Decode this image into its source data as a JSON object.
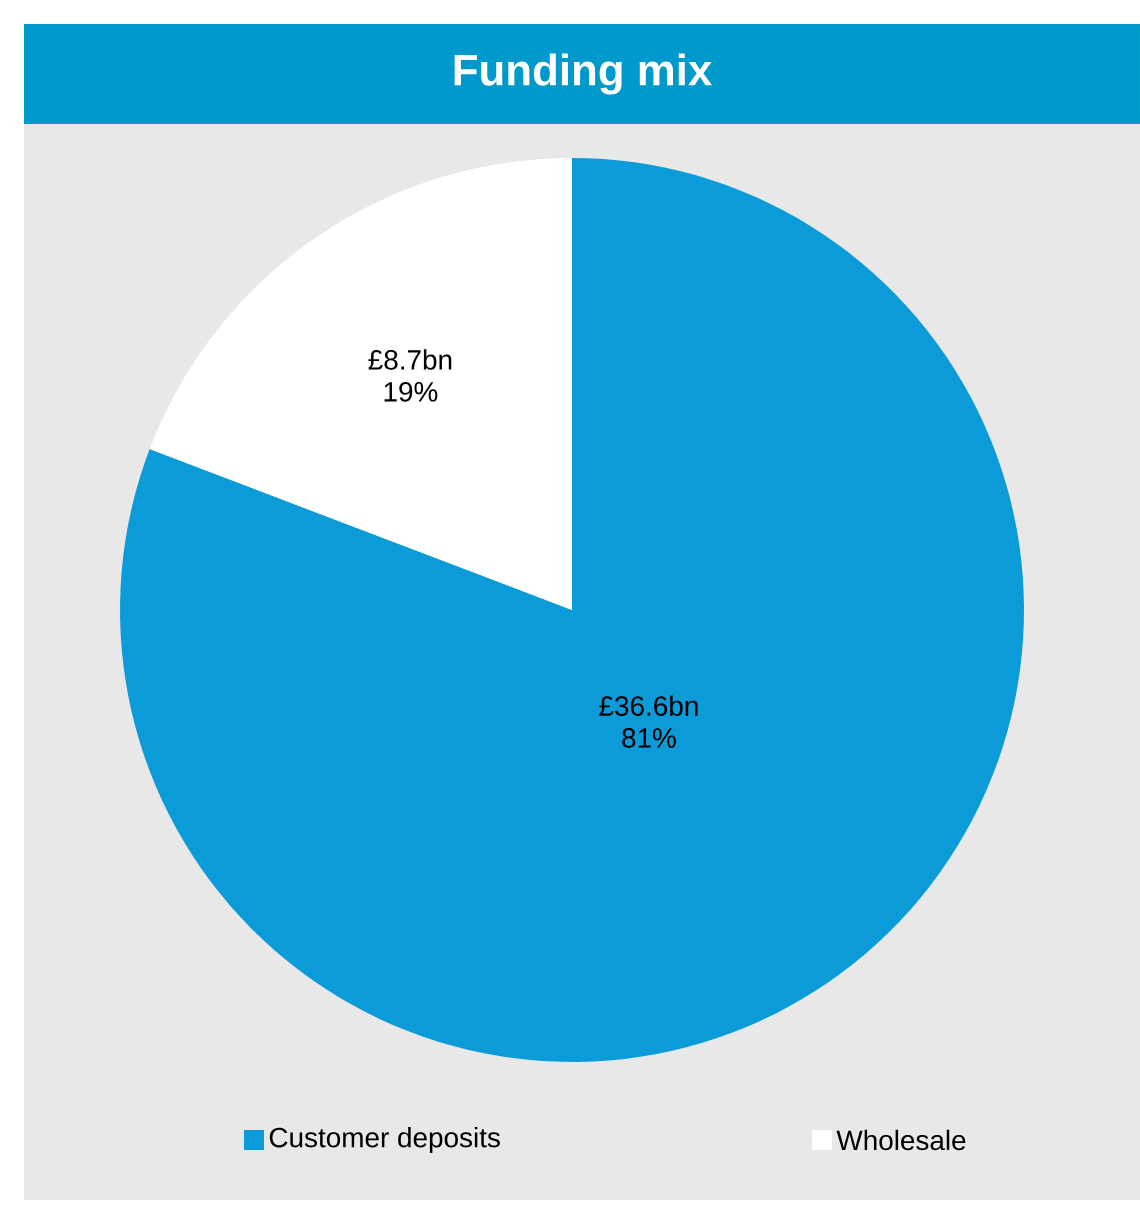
{
  "chart_data": {
    "type": "pie",
    "title": "Funding mix",
    "categories": [
      "Customer deposits",
      "Wholesale"
    ],
    "values": [
      36.6,
      8.7
    ],
    "value_labels": [
      "£36.6bn",
      "£8.7bn"
    ],
    "annotations": [
      "81%",
      "19%"
    ],
    "colors": [
      "#0a9bd8",
      "#ffffff"
    ],
    "legend": "bottom"
  }
}
